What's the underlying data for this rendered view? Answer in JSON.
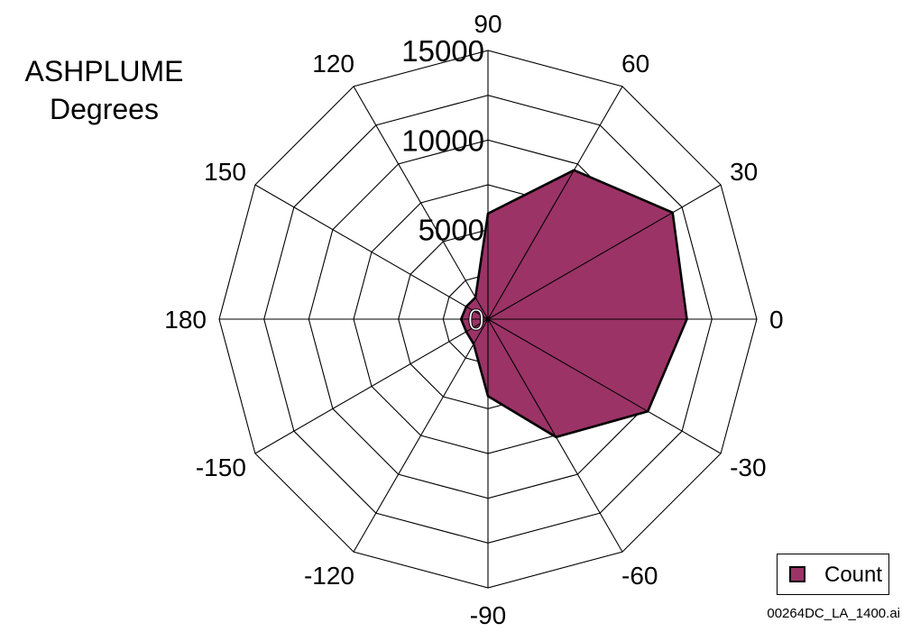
{
  "chart_data": {
    "type": "radar",
    "title": "ASHPLUME Degrees",
    "title_lines": [
      "ASHPLUME",
      "Degrees"
    ],
    "angle_unit": "degrees",
    "angles": [
      0,
      30,
      60,
      90,
      120,
      150,
      180,
      -150,
      -120,
      -90,
      -60,
      -30
    ],
    "angle_labels": [
      "0",
      "30",
      "60",
      "90",
      "120",
      "150",
      "180",
      "-150",
      "-120",
      "-90",
      "-60",
      "-30"
    ],
    "radial_ticks": [
      0,
      5000,
      10000,
      15000
    ],
    "radial_tick_labels": [
      "0",
      "5000",
      "10000",
      "15000"
    ],
    "rmax": 15000,
    "grid_rings": [
      0,
      2500,
      5000,
      7500,
      10000,
      12500,
      15000
    ],
    "grid": true,
    "legend_position": "bottom-right",
    "series": [
      {
        "name": "Count",
        "color": "#9B3366",
        "values": [
          11100,
          11900,
          9600,
          5900,
          1400,
          1400,
          1500,
          1400,
          1600,
          4300,
          7600,
          10300
        ]
      }
    ]
  },
  "legend": {
    "label": "Count",
    "swatch_color": "#9B3366"
  },
  "footer": {
    "code": "00264DC_LA_1400.ai"
  }
}
